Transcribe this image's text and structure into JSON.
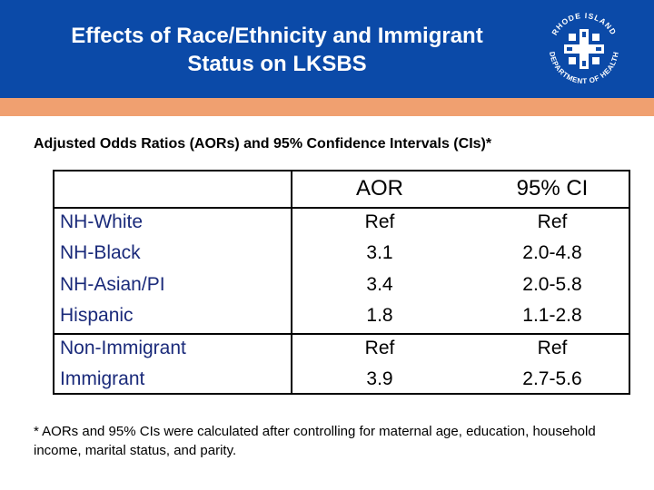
{
  "header": {
    "title_line1": "Effects of Race/Ethnicity and Immigrant",
    "title_line2": "Status on LKSBS",
    "bg_color": "#0b4aa8",
    "stripe_color": "#f0a070"
  },
  "logo": {
    "text_top": "RHODE ISLAND",
    "text_bottom": "DEPARTMENT OF HEALTH",
    "icon": "ri-health-cross-icon"
  },
  "subtitle": "Adjusted Odds Ratios (AORs) and 95% Confidence Intervals (CIs)*",
  "table": {
    "headers": {
      "label": "",
      "aor": "AOR",
      "ci": "95% CI"
    },
    "groups": [
      {
        "rows": [
          {
            "label": "NH-White",
            "aor": "Ref",
            "ci": "Ref"
          },
          {
            "label": "NH-Black",
            "aor": "3.1",
            "ci": "2.0-4.8"
          },
          {
            "label": "NH-Asian/PI",
            "aor": "3.4",
            "ci": "2.0-5.8"
          },
          {
            "label": "Hispanic",
            "aor": "1.8",
            "ci": "1.1-2.8"
          }
        ]
      },
      {
        "rows": [
          {
            "label": "Non-Immigrant",
            "aor": "Ref",
            "ci": "Ref"
          },
          {
            "label": "Immigrant",
            "aor": "3.9",
            "ci": "2.7-5.6"
          }
        ]
      }
    ]
  },
  "footnote": "* AORs and 95% CIs were calculated after controlling for maternal age, education, household income, marital status, and parity."
}
